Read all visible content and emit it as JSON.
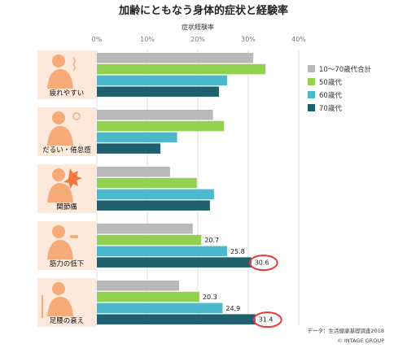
{
  "chart_data": {
    "type": "bar",
    "orientation": "horizontal",
    "title": "加齢にともなう身体的症状と経験率",
    "xlabel": "症状経験率",
    "xlim": [
      0,
      40
    ],
    "ticks": [
      "0%",
      "10%",
      "20%",
      "30%",
      "40%"
    ],
    "grid": true,
    "legend_position": "right",
    "categories": [
      "疲れやすい",
      "だるい・倦怠感",
      "関節痛",
      "筋力の低下",
      "足腰の衰え"
    ],
    "series": [
      {
        "name": "10〜70歳代合計",
        "color": "#b9b9b9",
        "values": [
          31,
          23,
          14.5,
          19,
          16.3
        ]
      },
      {
        "name": "50歳代",
        "color": "#92d050",
        "values": [
          33.4,
          25.2,
          19.8,
          20.7,
          20.3
        ]
      },
      {
        "name": "60歳代",
        "color": "#4bb8cc",
        "values": [
          25.8,
          15.9,
          23.2,
          25.8,
          24.9
        ]
      },
      {
        "name": "70歳代",
        "color": "#1f5f6e",
        "values": [
          24.2,
          12.6,
          22.4,
          30.6,
          31.4
        ]
      }
    ],
    "data_labels": [
      {
        "category": 3,
        "series": 1,
        "text": "20.7",
        "circled": false
      },
      {
        "category": 3,
        "series": 2,
        "text": "25.8",
        "circled": false
      },
      {
        "category": 3,
        "series": 3,
        "text": "30.6",
        "circled": true
      },
      {
        "category": 4,
        "series": 1,
        "text": "20.3",
        "circled": false
      },
      {
        "category": 4,
        "series": 2,
        "text": "24.9",
        "circled": false
      },
      {
        "category": 4,
        "series": 3,
        "text": "31.4",
        "circled": true
      }
    ],
    "source_note": "データ：生活健康基礎調査2018",
    "copyright": "© INTAGE GROUP",
    "colors": {
      "grid": "#dddddd",
      "panel": "#fde9dc",
      "figure": "#f6ab78",
      "highlight": "#e53935"
    }
  }
}
